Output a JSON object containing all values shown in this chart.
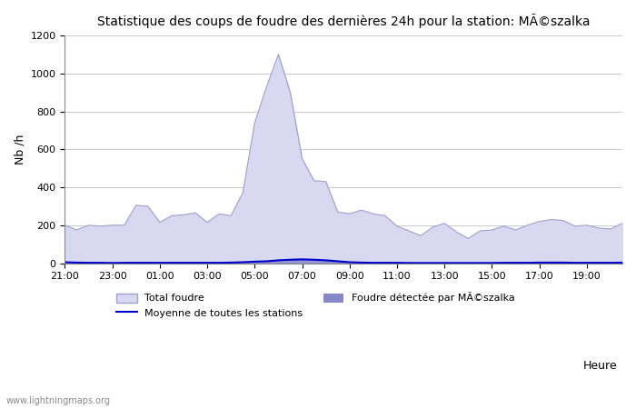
{
  "title": "Statistique des coups de foudre des dernières 24h pour la station: MÃ©szalka",
  "ylabel": "Nb /h",
  "xlabel_right": "Heure",
  "watermark": "www.lightningmaps.org",
  "ylim": [
    0,
    1200
  ],
  "yticks": [
    0,
    200,
    400,
    600,
    800,
    1000,
    1200
  ],
  "x_labels": [
    "21:00",
    "23:00",
    "01:00",
    "03:00",
    "05:00",
    "07:00",
    "09:00",
    "11:00",
    "13:00",
    "15:00",
    "17:00",
    "19:00"
  ],
  "bg_color": "#ffffff",
  "grid_color": "#cccccc",
  "total_foudre_color": "#d8d8f0",
  "total_foudre_edge": "#a0a0cc",
  "detected_color": "#8888cc",
  "moyenne_color": "#0000cc",
  "total_foudre": [
    200,
    175,
    200,
    195,
    200,
    200,
    305,
    300,
    215,
    250,
    255,
    265,
    215,
    260,
    250,
    370,
    740,
    930,
    1100,
    900,
    550,
    435,
    430,
    270,
    260,
    280,
    260,
    250,
    195,
    170,
    145,
    190,
    210,
    165,
    130,
    170,
    175,
    195,
    175,
    200,
    220,
    230,
    225,
    195,
    200,
    185,
    180,
    210
  ],
  "detected": [
    5,
    3,
    2,
    2,
    1,
    2,
    2,
    2,
    2,
    2,
    2,
    2,
    2,
    2,
    3,
    5,
    8,
    10,
    15,
    18,
    20,
    18,
    15,
    10,
    5,
    3,
    2,
    2,
    2,
    1,
    1,
    1,
    1,
    1,
    1,
    1,
    1,
    2,
    2,
    2,
    3,
    3,
    3,
    2,
    2,
    2,
    2,
    3
  ],
  "moyenne": [
    5,
    3,
    2,
    2,
    1,
    2,
    2,
    2,
    2,
    2,
    2,
    2,
    2,
    2,
    3,
    5,
    8,
    10,
    15,
    18,
    20,
    18,
    15,
    10,
    5,
    3,
    2,
    2,
    2,
    1,
    1,
    1,
    1,
    1,
    1,
    1,
    1,
    2,
    2,
    2,
    3,
    3,
    3,
    2,
    2,
    2,
    2,
    3
  ],
  "n_points": 48,
  "legend_total_label": "Total foudre",
  "legend_detected_label": "Foudre détectée par MÃ©szalka",
  "legend_moyenne_label": "Moyenne de toutes les stations"
}
